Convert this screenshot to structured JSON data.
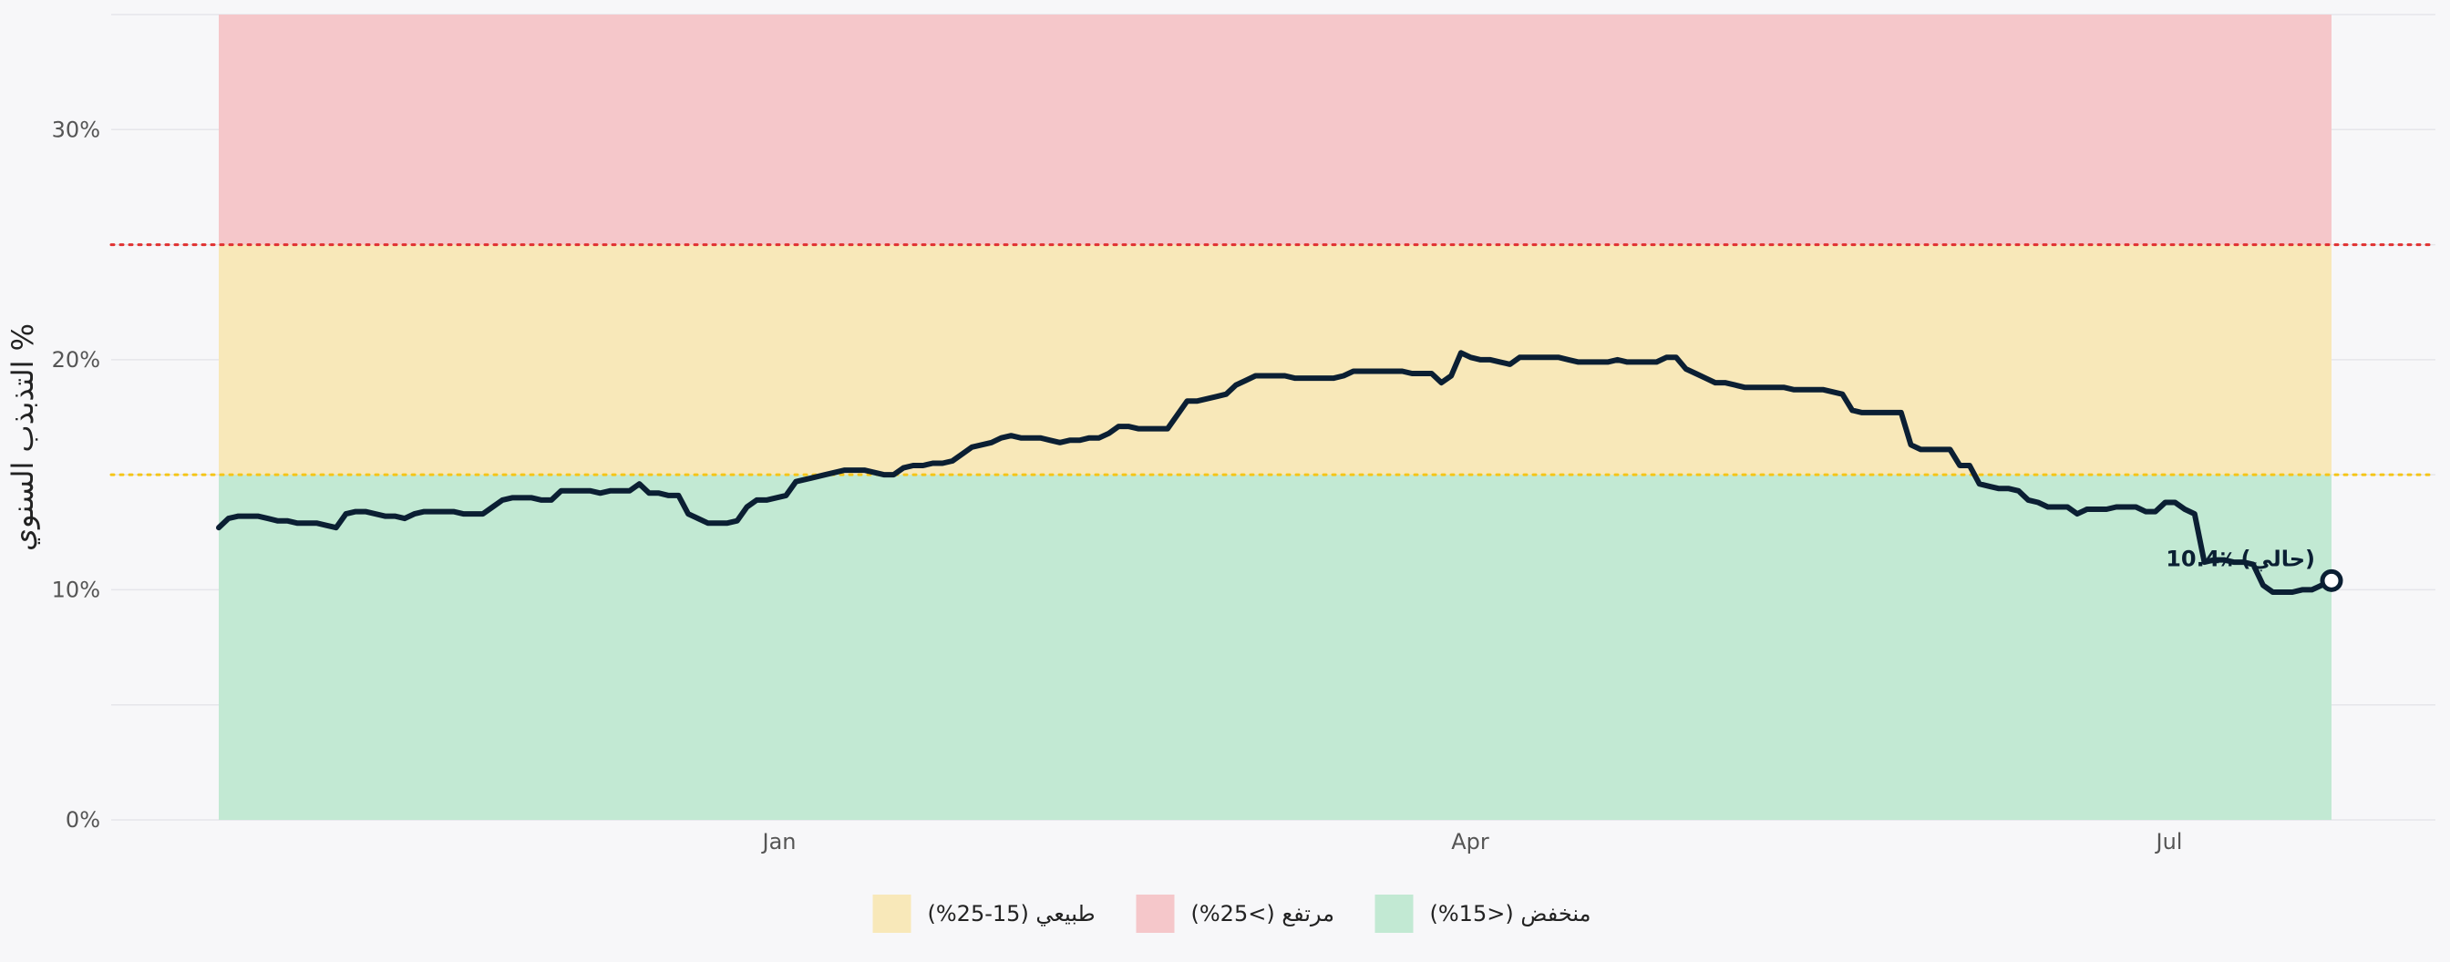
{
  "chart_data": {
    "type": "line",
    "ylabel": "التذبذب السنوي %",
    "y_unit": "%",
    "ylim": [
      0,
      35
    ],
    "y_ticks": [
      0,
      10,
      20,
      30
    ],
    "y_tick_labels": [
      "0%",
      "10%",
      "20%",
      "30%"
    ],
    "x_ticks": [
      "Jan",
      "Apr",
      "Jul"
    ],
    "grid": true,
    "legend_position": "bottom-center",
    "thresholds": [
      {
        "value": 15,
        "color": "#f5c518"
      },
      {
        "value": 25,
        "color": "#e03131"
      }
    ],
    "zones": [
      {
        "key": "low",
        "label": "منخفض (<15%)",
        "from": 0,
        "to": 15,
        "color": "#c2e9d3"
      },
      {
        "key": "high",
        "label": "مرتفع (>25%)",
        "from": 25,
        "to": 35,
        "color": "#f5c7ca"
      },
      {
        "key": "normal",
        "label": "طبيعي (15-25%)",
        "from": 15,
        "to": 25,
        "color": "#f8e8b9"
      }
    ],
    "legend_order": [
      "normal",
      "high",
      "low"
    ],
    "line_color": "#0b1f33",
    "current_label": "10.4٪ (حالي)",
    "current_value": 10.4,
    "values": [
      12.7,
      13.1,
      13.2,
      13.2,
      13.2,
      13.1,
      13.0,
      13.0,
      12.9,
      12.9,
      12.9,
      12.8,
      12.7,
      13.3,
      13.4,
      13.4,
      13.3,
      13.2,
      13.2,
      13.1,
      13.3,
      13.4,
      13.4,
      13.4,
      13.4,
      13.3,
      13.3,
      13.3,
      13.6,
      13.9,
      14.0,
      14.0,
      14.0,
      13.9,
      13.9,
      14.3,
      14.3,
      14.3,
      14.3,
      14.2,
      14.3,
      14.3,
      14.3,
      14.6,
      14.2,
      14.2,
      14.1,
      14.1,
      13.3,
      13.1,
      12.9,
      12.9,
      12.9,
      13.0,
      13.6,
      13.9,
      13.9,
      14.0,
      14.1,
      14.7,
      14.8,
      14.9,
      15.0,
      15.1,
      15.2,
      15.2,
      15.2,
      15.1,
      15.0,
      15.0,
      15.3,
      15.4,
      15.4,
      15.5,
      15.5,
      15.6,
      15.9,
      16.2,
      16.3,
      16.4,
      16.6,
      16.7,
      16.6,
      16.6,
      16.6,
      16.5,
      16.4,
      16.5,
      16.5,
      16.6,
      16.6,
      16.8,
      17.1,
      17.1,
      17.0,
      17.0,
      17.0,
      17.0,
      17.6,
      18.2,
      18.2,
      18.3,
      18.4,
      18.5,
      18.9,
      19.1,
      19.3,
      19.3,
      19.3,
      19.3,
      19.2,
      19.2,
      19.2,
      19.2,
      19.2,
      19.3,
      19.5,
      19.5,
      19.5,
      19.5,
      19.5,
      19.5,
      19.4,
      19.4,
      19.4,
      19.0,
      19.3,
      20.3,
      20.1,
      20.0,
      20.0,
      19.9,
      19.8,
      20.1,
      20.1,
      20.1,
      20.1,
      20.1,
      20.0,
      19.9,
      19.9,
      19.9,
      19.9,
      20.0,
      19.9,
      19.9,
      19.9,
      19.9,
      20.1,
      20.1,
      19.6,
      19.4,
      19.2,
      19.0,
      19.0,
      18.9,
      18.8,
      18.8,
      18.8,
      18.8,
      18.8,
      18.7,
      18.7,
      18.7,
      18.7,
      18.6,
      18.5,
      17.8,
      17.7,
      17.7,
      17.7,
      17.7,
      17.7,
      16.3,
      16.1,
      16.1,
      16.1,
      16.1,
      15.4,
      15.4,
      14.6,
      14.5,
      14.4,
      14.4,
      14.3,
      13.9,
      13.8,
      13.6,
      13.6,
      13.6,
      13.3,
      13.5,
      13.5,
      13.5,
      13.6,
      13.6,
      13.6,
      13.4,
      13.4,
      13.8,
      13.8,
      13.5,
      13.3,
      11.2,
      11.3,
      11.3,
      11.2,
      11.2,
      11.1,
      10.2,
      9.9,
      9.9,
      9.9,
      10.0,
      10.0,
      10.2,
      10.4
    ]
  }
}
